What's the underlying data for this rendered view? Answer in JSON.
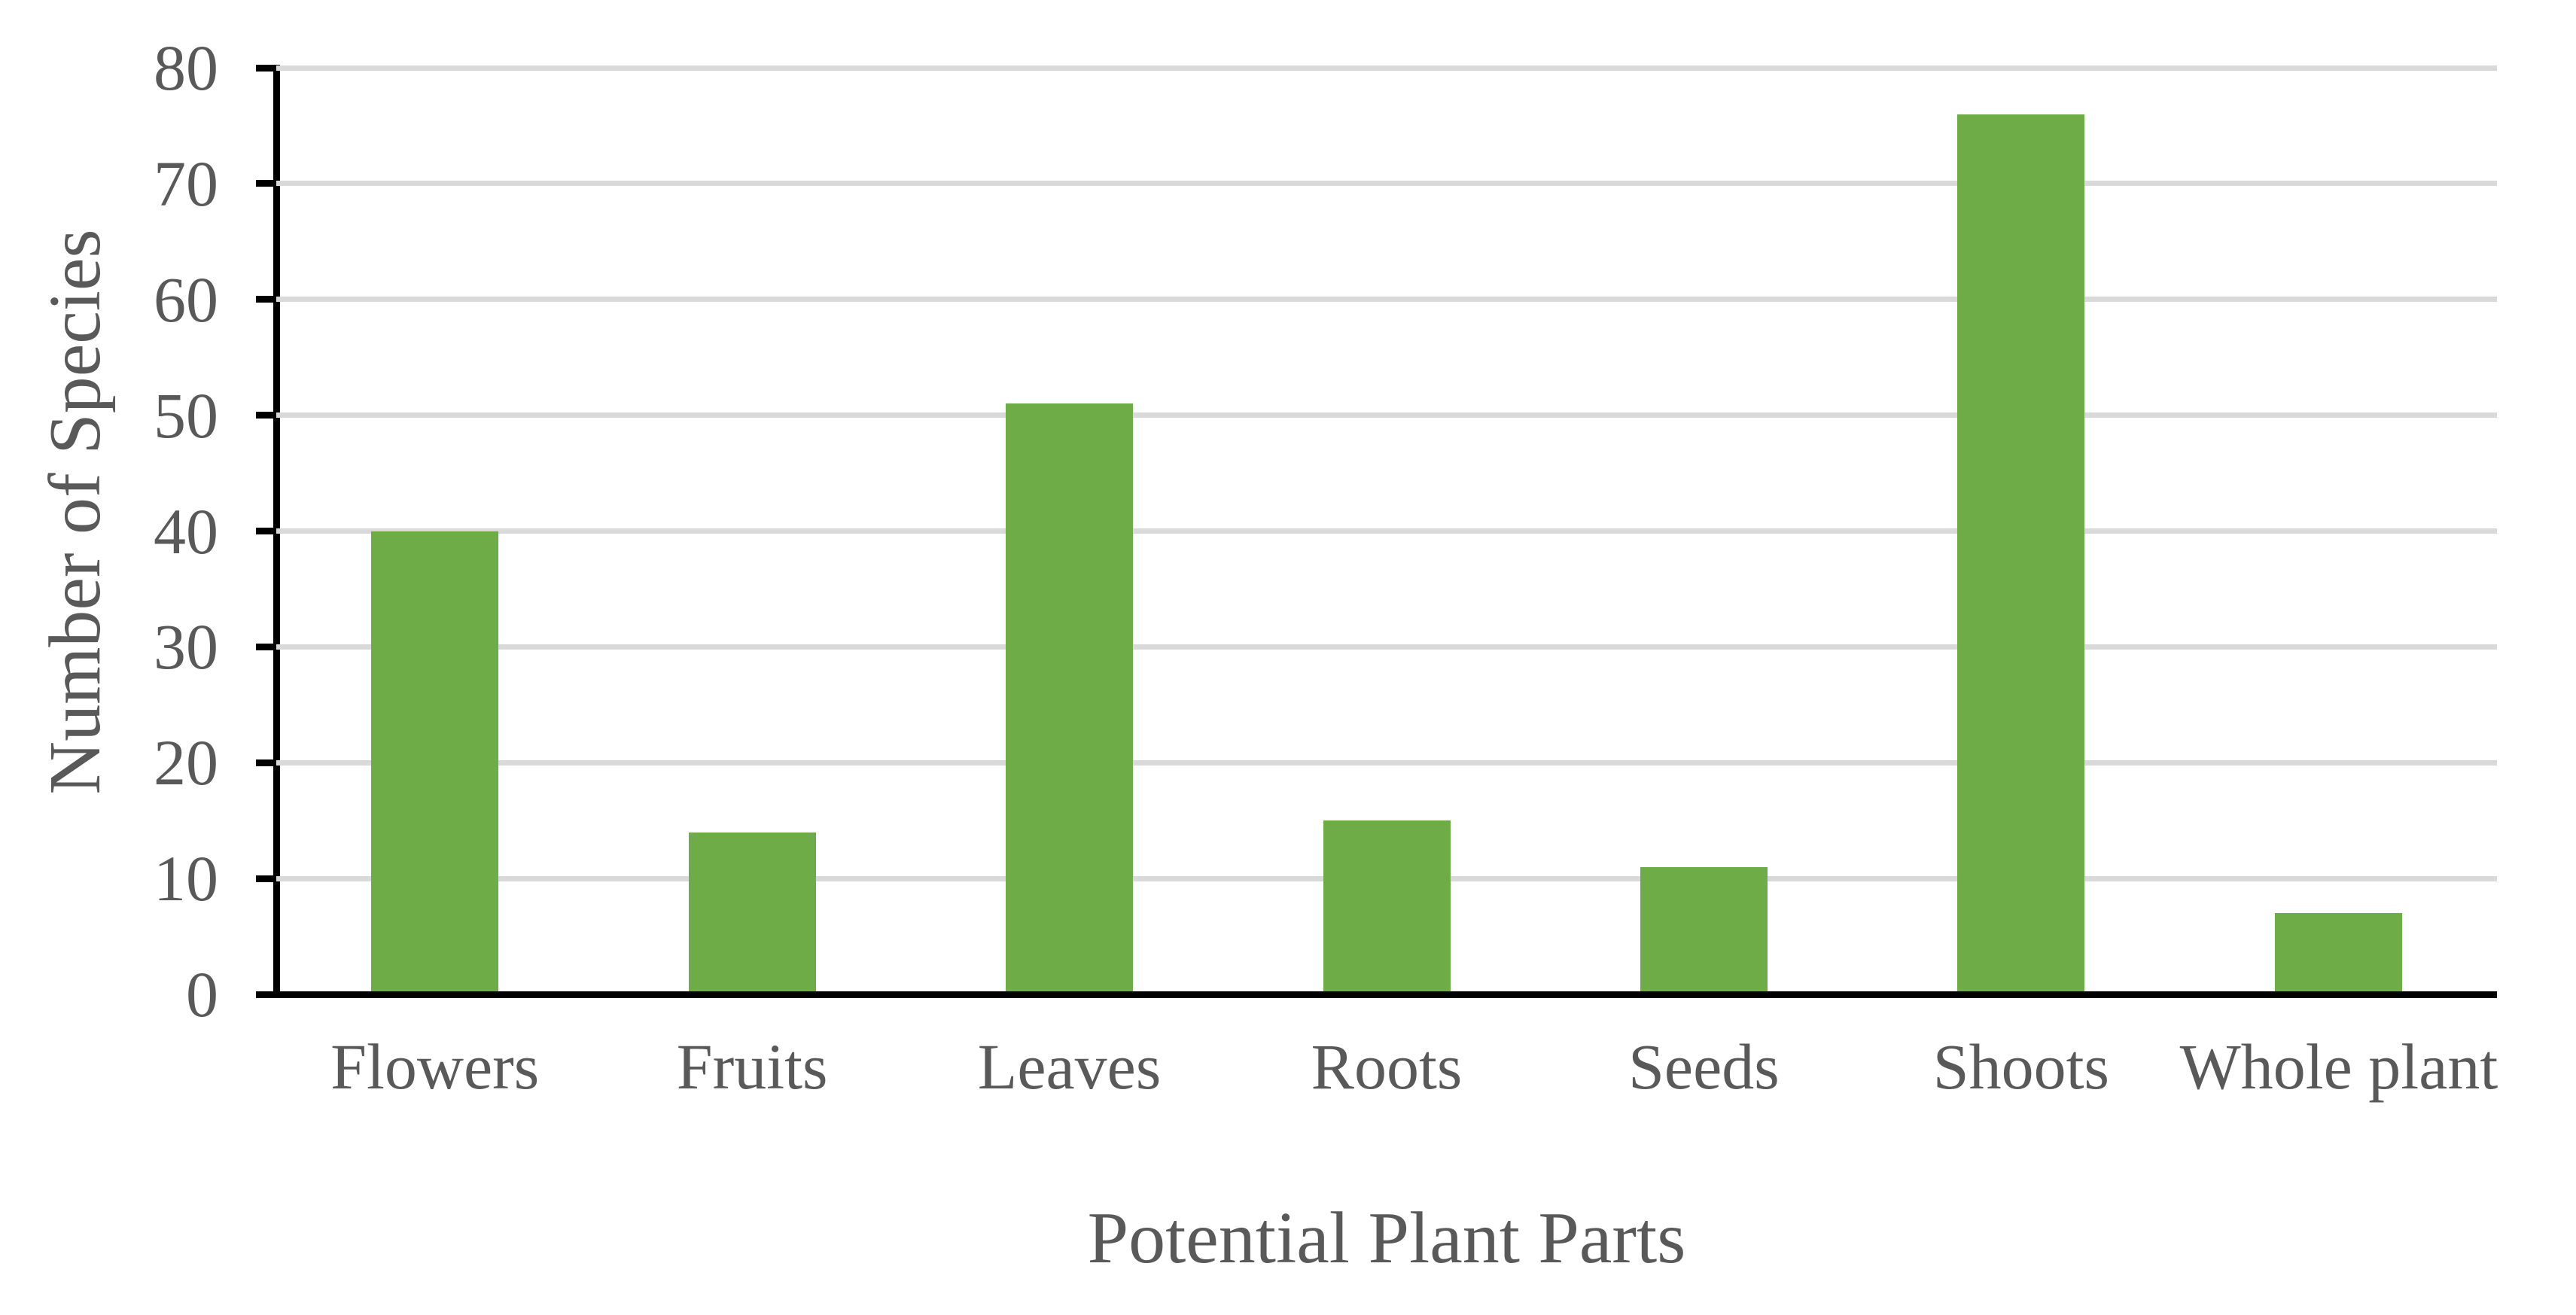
{
  "chart_data": {
    "type": "bar",
    "title": "",
    "categories": [
      "Flowers",
      "Fruits",
      "Leaves",
      "Roots",
      "Seeds",
      "Shoots",
      "Whole plant"
    ],
    "values": [
      40,
      14,
      51,
      15,
      11,
      76,
      7
    ],
    "xlabel": "Potential Plant Parts",
    "ylabel": "Number of Species",
    "ylim": [
      0,
      80
    ],
    "yticks": [
      0,
      10,
      20,
      30,
      40,
      50,
      60,
      70,
      80
    ],
    "grid": "horizontal",
    "legend": "none",
    "colors": {
      "bar": "#6EAC48",
      "axis_text": "#595959",
      "gridline": "#D9D9D9",
      "axis_line": "#000000",
      "background": "#FFFFFF"
    }
  }
}
